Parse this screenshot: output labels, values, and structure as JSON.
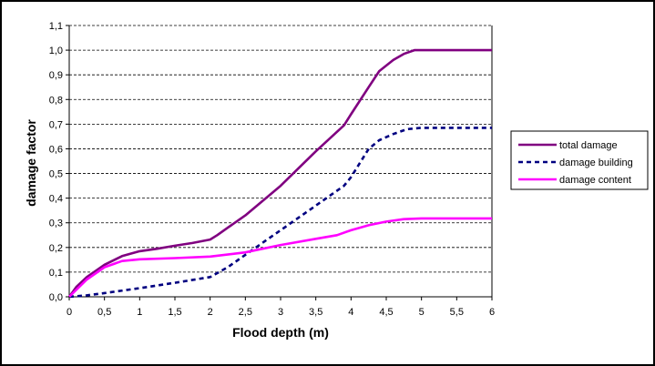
{
  "chart_data": {
    "type": "line",
    "title": "",
    "xlabel": "Flood depth (m)",
    "ylabel": "damage factor",
    "xlim": [
      0,
      6
    ],
    "ylim": [
      0,
      1.1
    ],
    "x_ticks": [
      "0",
      "0,5",
      "1",
      "1,5",
      "2",
      "2,5",
      "3",
      "3,5",
      "4",
      "4,5",
      "5",
      "5,5",
      "6"
    ],
    "y_ticks": [
      "0,0",
      "0,1",
      "0,2",
      "0,3",
      "0,4",
      "0,5",
      "0,6",
      "0,7",
      "0,8",
      "0,9",
      "1,0",
      "1,1"
    ],
    "grid": "horizontal dashed",
    "legend_position": "right",
    "series": [
      {
        "name": "total damage",
        "color": "#800080",
        "style": "solid",
        "x": [
          0,
          0.1,
          0.25,
          0.5,
          0.75,
          1,
          1.25,
          1.5,
          1.75,
          2,
          2.1,
          2.25,
          2.5,
          3,
          3.5,
          3.9,
          4,
          4.25,
          4.4,
          4.6,
          4.75,
          4.9,
          5,
          5.5,
          6
        ],
        "y": [
          0,
          0.04,
          0.08,
          0.13,
          0.165,
          0.185,
          0.195,
          0.207,
          0.218,
          0.232,
          0.25,
          0.28,
          0.33,
          0.45,
          0.59,
          0.695,
          0.74,
          0.85,
          0.915,
          0.96,
          0.985,
          1.0,
          1.0,
          1.0,
          1.0
        ]
      },
      {
        "name": "damage building",
        "color": "#000080",
        "style": "dashed",
        "x": [
          0,
          0.25,
          0.5,
          1,
          1.5,
          2,
          2.25,
          2.5,
          3,
          3.5,
          3.9,
          4,
          4.25,
          4.4,
          4.6,
          4.8,
          5,
          5.5,
          6
        ],
        "y": [
          0,
          0.006,
          0.015,
          0.035,
          0.057,
          0.08,
          0.12,
          0.17,
          0.27,
          0.37,
          0.45,
          0.485,
          0.6,
          0.635,
          0.66,
          0.68,
          0.685,
          0.685,
          0.685
        ]
      },
      {
        "name": "damage content",
        "color": "#ff00ff",
        "style": "solid",
        "x": [
          0,
          0.25,
          0.5,
          0.75,
          1,
          1.5,
          2,
          2.5,
          3,
          3.5,
          3.8,
          4,
          4.25,
          4.5,
          4.75,
          5,
          5.5,
          6
        ],
        "y": [
          0,
          0.07,
          0.12,
          0.145,
          0.152,
          0.157,
          0.163,
          0.18,
          0.21,
          0.235,
          0.25,
          0.27,
          0.29,
          0.305,
          0.315,
          0.318,
          0.318,
          0.318
        ]
      }
    ]
  }
}
